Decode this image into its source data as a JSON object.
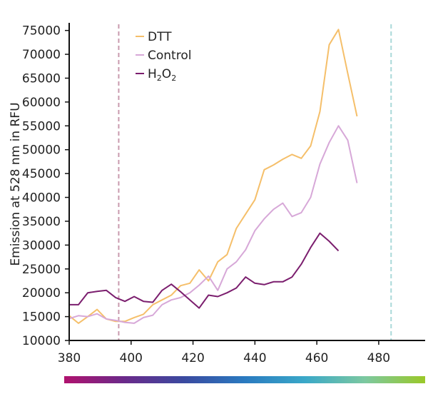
{
  "chart_data": {
    "type": "line",
    "title": "",
    "xlabel": "",
    "ylabel": "Emission at 528 nm in RFU",
    "xlim": [
      380,
      495
    ],
    "ylim": [
      10000,
      76000
    ],
    "x_ticks": [
      380,
      400,
      420,
      440,
      460,
      480
    ],
    "y_ticks": [
      10000,
      15000,
      20000,
      25000,
      30000,
      35000,
      40000,
      45000,
      50000,
      55000,
      60000,
      65000,
      70000,
      75000
    ],
    "grid": false,
    "legend_position": "top-left",
    "reference_lines": [
      {
        "x": 396,
        "color": "#c99aae"
      },
      {
        "x": 484,
        "color": "#a9d9d9"
      }
    ],
    "x": [
      380,
      383,
      386,
      389,
      392,
      395,
      398,
      401,
      404,
      407,
      410,
      413,
      416,
      419,
      422,
      425,
      428,
      431,
      434,
      437,
      440,
      443,
      446,
      449,
      452,
      455,
      458,
      461,
      464,
      467,
      470,
      473,
      476,
      479,
      482,
      485,
      488,
      491,
      494
    ],
    "series": [
      {
        "name": "DTT",
        "color": "#f5bf6a",
        "values": [
          15200,
          13600,
          15000,
          16500,
          14500,
          14000,
          14000,
          14800,
          15500,
          17500,
          18500,
          19500,
          21500,
          22000,
          24800,
          22500,
          26500,
          28000,
          33500,
          36500,
          39500,
          45800,
          46800,
          48000,
          49000,
          48200,
          50800,
          58000,
          72000,
          75200,
          66000,
          57000,
          null,
          null,
          null,
          null,
          null,
          null,
          null
        ]
      },
      {
        "name": "Control",
        "color": "#d7a8d8",
        "values": [
          14600,
          15200,
          15000,
          15600,
          14500,
          14200,
          13800,
          13600,
          14800,
          15300,
          17500,
          18500,
          19000,
          20000,
          21600,
          23500,
          20500,
          25000,
          26500,
          29000,
          33000,
          35500,
          37500,
          38800,
          36000,
          36800,
          40000,
          47000,
          51500,
          55000,
          52000,
          43000,
          null,
          null,
          null,
          null,
          null,
          null,
          null
        ]
      },
      {
        "name": "H2O2",
        "name_parts": [
          "H",
          "2",
          "O",
          "2"
        ],
        "color": "#7b1e6e",
        "values": [
          17500,
          17500,
          20000,
          20300,
          20500,
          19000,
          18200,
          19200,
          18200,
          18000,
          20500,
          21800,
          20200,
          18500,
          16800,
          19500,
          19200,
          20000,
          21000,
          23300,
          22000,
          21700,
          22300,
          22300,
          23300,
          26000,
          29500,
          32500,
          30800,
          28800,
          null,
          null,
          null,
          null,
          null,
          null,
          null,
          null,
          null
        ]
      }
    ]
  },
  "colorbar": {
    "stops": [
      "#b0126e",
      "#6a2a8a",
      "#3a4aa0",
      "#2a7ac0",
      "#3aa8c8",
      "#7cc8a0",
      "#9ac828"
    ]
  }
}
